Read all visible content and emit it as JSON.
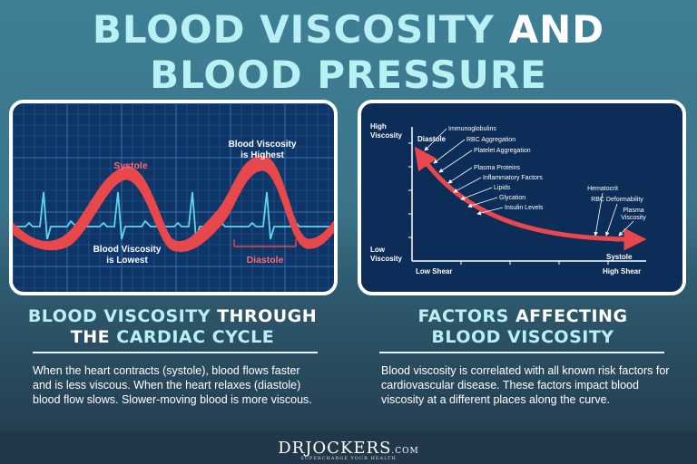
{
  "title": {
    "line1_highlight": "BLOOD VISCOSITY",
    "line1_rest": "AND",
    "line2": "BLOOD PRESSURE"
  },
  "left_panel": {
    "label_systole": "Systole",
    "label_highest_1": "Blood Viscosity",
    "label_highest_2": "is Highest",
    "label_lowest_1": "Blood Viscosity",
    "label_lowest_2": "is Lowest",
    "label_diastole": "Diastole",
    "colors": {
      "band": "#e8474c",
      "ecg": "#5fd6e6",
      "grid": "#2a5f9e"
    }
  },
  "right_panel": {
    "y_top_1": "High",
    "y_top_2": "Viscosity",
    "y_bottom_1": "Low",
    "y_bottom_2": "Viscosity",
    "x_left": "Low Shear",
    "x_right": "High Shear",
    "curve_start": "Diastole",
    "curve_end": "Systole",
    "factors_left": [
      "Immunoglobulins",
      "RBC Aggregation",
      "Platelet Aggregation",
      "Plasma Proteins",
      "Inflammatory Factors",
      "Lipids",
      "Glycation",
      "Insulin Levels"
    ],
    "factors_right": [
      "Hematocrit",
      "RBC Deformability",
      "Plasma",
      "Viscosity"
    ],
    "colors": {
      "curve": "#e8474c"
    }
  },
  "left_section": {
    "heading_hl": "BLOOD VISCOSITY",
    "heading_rest": "THROUGH",
    "heading_line2_pre": "THE",
    "heading_line2_hl": "CARDIAC CYCLE",
    "body": "When the heart contracts (systole), blood flows faster and is less viscous. When the heart relaxes (diastole) blood flow slows. Slower-moving blood is more viscous."
  },
  "right_section": {
    "heading_hl": "FACTORS",
    "heading_rest": "AFFECTING",
    "heading_line2": "BLOOD VISCOSITY",
    "body": "Blood viscosity is correlated with all known risk factors for cardiovascular disease. These factors impact blood viscosity at a different places along the curve."
  },
  "footer": {
    "logo_dr": "DR",
    "logo_name": "JOCKERS",
    "logo_domain": ".COM",
    "tagline": "SUPERCHARGE YOUR HEALTH"
  }
}
